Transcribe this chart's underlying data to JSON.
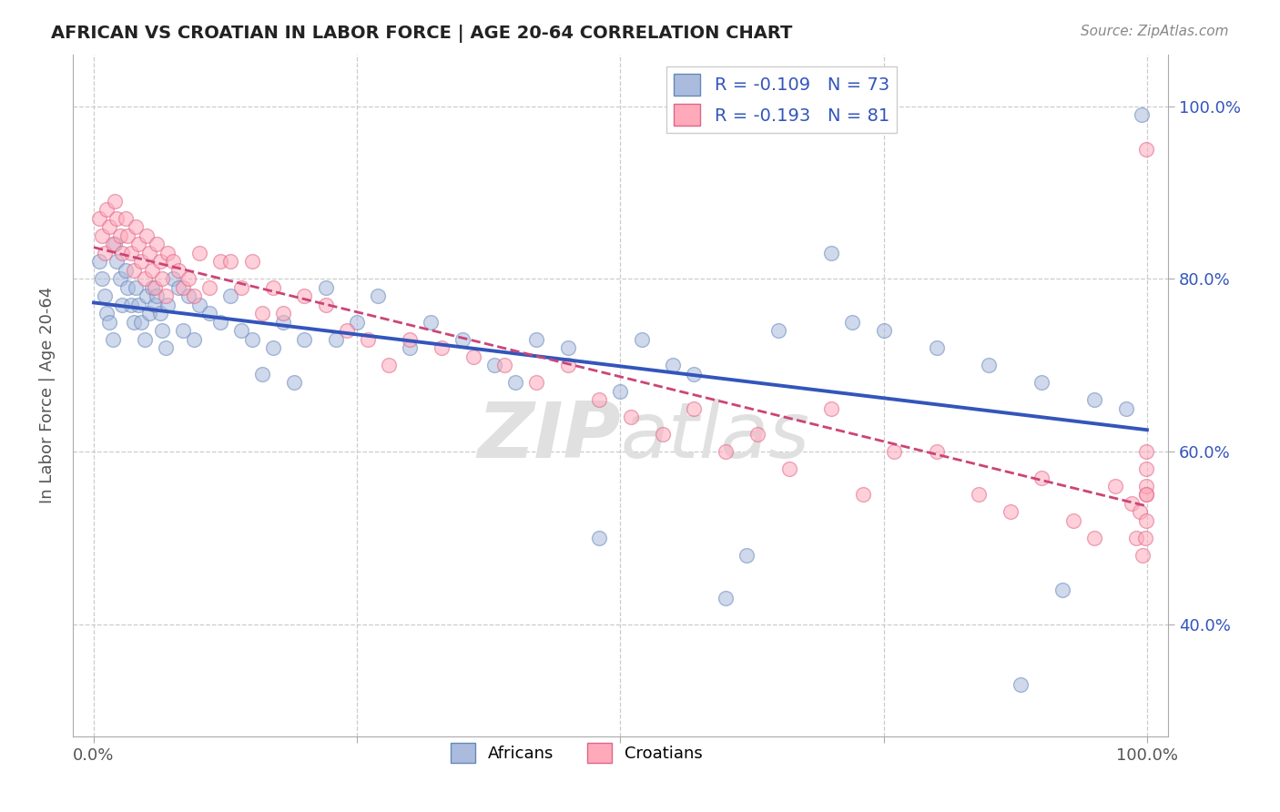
{
  "title": "AFRICAN VS CROATIAN IN LABOR FORCE | AGE 20-64 CORRELATION CHART",
  "source": "Source: ZipAtlas.com",
  "ylabel": "In Labor Force | Age 20-64",
  "xlim": [
    -0.02,
    1.02
  ],
  "ylim": [
    0.27,
    1.06
  ],
  "yticks": [
    0.4,
    0.6,
    0.8,
    1.0
  ],
  "ytick_labels": [
    "40.0%",
    "60.0%",
    "80.0%",
    "100.0%"
  ],
  "xticks": [
    0.0,
    0.25,
    0.5,
    0.75,
    1.0
  ],
  "xtick_labels": [
    "0.0%",
    "",
    "",
    "",
    "100.0%"
  ],
  "R_african": -0.109,
  "N_african": 73,
  "R_croatian": -0.193,
  "N_croatian": 81,
  "blue_fill": "#aabbdd",
  "blue_edge": "#6688bb",
  "pink_fill": "#ffaabb",
  "pink_edge": "#dd6688",
  "trend_blue": "#3355bb",
  "trend_pink": "#cc4477",
  "watermark_color": "#e0e0e0",
  "background": "#ffffff",
  "grid_color": "#cccccc",
  "title_color": "#222222",
  "source_color": "#888888",
  "axis_label_color": "#555555",
  "tick_color_y_right": "#3355bb",
  "african_x": [
    0.005,
    0.008,
    0.01,
    0.012,
    0.015,
    0.018,
    0.02,
    0.022,
    0.025,
    0.027,
    0.03,
    0.032,
    0.035,
    0.038,
    0.04,
    0.042,
    0.045,
    0.048,
    0.05,
    0.053,
    0.055,
    0.058,
    0.06,
    0.063,
    0.065,
    0.068,
    0.07,
    0.075,
    0.08,
    0.085,
    0.09,
    0.095,
    0.1,
    0.11,
    0.12,
    0.13,
    0.14,
    0.15,
    0.16,
    0.17,
    0.18,
    0.19,
    0.2,
    0.22,
    0.23,
    0.25,
    0.27,
    0.3,
    0.32,
    0.35,
    0.38,
    0.4,
    0.42,
    0.45,
    0.48,
    0.5,
    0.52,
    0.55,
    0.57,
    0.6,
    0.62,
    0.65,
    0.7,
    0.72,
    0.75,
    0.8,
    0.85,
    0.88,
    0.9,
    0.92,
    0.95,
    0.98,
    0.995
  ],
  "african_y": [
    0.82,
    0.8,
    0.78,
    0.76,
    0.75,
    0.73,
    0.84,
    0.82,
    0.8,
    0.77,
    0.81,
    0.79,
    0.77,
    0.75,
    0.79,
    0.77,
    0.75,
    0.73,
    0.78,
    0.76,
    0.79,
    0.77,
    0.78,
    0.76,
    0.74,
    0.72,
    0.77,
    0.8,
    0.79,
    0.74,
    0.78,
    0.73,
    0.77,
    0.76,
    0.75,
    0.78,
    0.74,
    0.73,
    0.69,
    0.72,
    0.75,
    0.68,
    0.73,
    0.79,
    0.73,
    0.75,
    0.78,
    0.72,
    0.75,
    0.73,
    0.7,
    0.68,
    0.73,
    0.72,
    0.5,
    0.67,
    0.73,
    0.7,
    0.69,
    0.43,
    0.48,
    0.74,
    0.83,
    0.75,
    0.74,
    0.72,
    0.7,
    0.33,
    0.68,
    0.44,
    0.66,
    0.65,
    0.99
  ],
  "croatian_x": [
    0.005,
    0.008,
    0.01,
    0.012,
    0.015,
    0.018,
    0.02,
    0.022,
    0.025,
    0.027,
    0.03,
    0.032,
    0.035,
    0.038,
    0.04,
    0.042,
    0.045,
    0.048,
    0.05,
    0.053,
    0.055,
    0.058,
    0.06,
    0.063,
    0.065,
    0.068,
    0.07,
    0.075,
    0.08,
    0.085,
    0.09,
    0.095,
    0.1,
    0.11,
    0.12,
    0.13,
    0.14,
    0.15,
    0.16,
    0.17,
    0.18,
    0.2,
    0.22,
    0.24,
    0.26,
    0.28,
    0.3,
    0.33,
    0.36,
    0.39,
    0.42,
    0.45,
    0.48,
    0.51,
    0.54,
    0.57,
    0.6,
    0.63,
    0.66,
    0.7,
    0.73,
    0.76,
    0.8,
    0.84,
    0.87,
    0.9,
    0.93,
    0.95,
    0.97,
    0.985,
    0.99,
    0.993,
    0.996,
    0.998,
    0.999,
    0.999,
    0.999,
    0.999,
    0.999,
    0.999,
    0.999
  ],
  "croatian_y": [
    0.87,
    0.85,
    0.83,
    0.88,
    0.86,
    0.84,
    0.89,
    0.87,
    0.85,
    0.83,
    0.87,
    0.85,
    0.83,
    0.81,
    0.86,
    0.84,
    0.82,
    0.8,
    0.85,
    0.83,
    0.81,
    0.79,
    0.84,
    0.82,
    0.8,
    0.78,
    0.83,
    0.82,
    0.81,
    0.79,
    0.8,
    0.78,
    0.83,
    0.79,
    0.82,
    0.82,
    0.79,
    0.82,
    0.76,
    0.79,
    0.76,
    0.78,
    0.77,
    0.74,
    0.73,
    0.7,
    0.73,
    0.72,
    0.71,
    0.7,
    0.68,
    0.7,
    0.66,
    0.64,
    0.62,
    0.65,
    0.6,
    0.62,
    0.58,
    0.65,
    0.55,
    0.6,
    0.6,
    0.55,
    0.53,
    0.57,
    0.52,
    0.5,
    0.56,
    0.54,
    0.5,
    0.53,
    0.48,
    0.5,
    0.55,
    0.58,
    0.6,
    0.56,
    0.52,
    0.95,
    0.55
  ]
}
